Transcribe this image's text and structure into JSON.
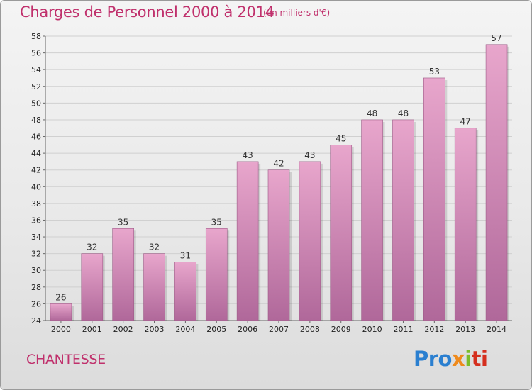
{
  "chart_data": {
    "type": "bar",
    "title": "Charges de Personnel 2000 à 2014",
    "subtitle": "(en milliers d'€)",
    "categories": [
      "2000",
      "2001",
      "2002",
      "2003",
      "2004",
      "2005",
      "2006",
      "2007",
      "2008",
      "2009",
      "2010",
      "2011",
      "2012",
      "2013",
      "2014"
    ],
    "values": [
      26,
      32,
      35,
      32,
      31,
      35,
      43,
      42,
      43,
      45,
      48,
      48,
      53,
      47,
      57
    ],
    "ylim": [
      24,
      58
    ],
    "yticks": [
      24,
      26,
      28,
      30,
      32,
      34,
      36,
      38,
      40,
      42,
      44,
      46,
      48,
      50,
      52,
      54,
      56,
      58
    ],
    "grid": true,
    "bar_color": "#d98cb8",
    "bar_color_dark": "#a8608e",
    "legend": "none"
  },
  "footer": {
    "commune": "CHANTESSE",
    "logo_text": [
      "Pro",
      "x",
      "i",
      "ti"
    ]
  }
}
